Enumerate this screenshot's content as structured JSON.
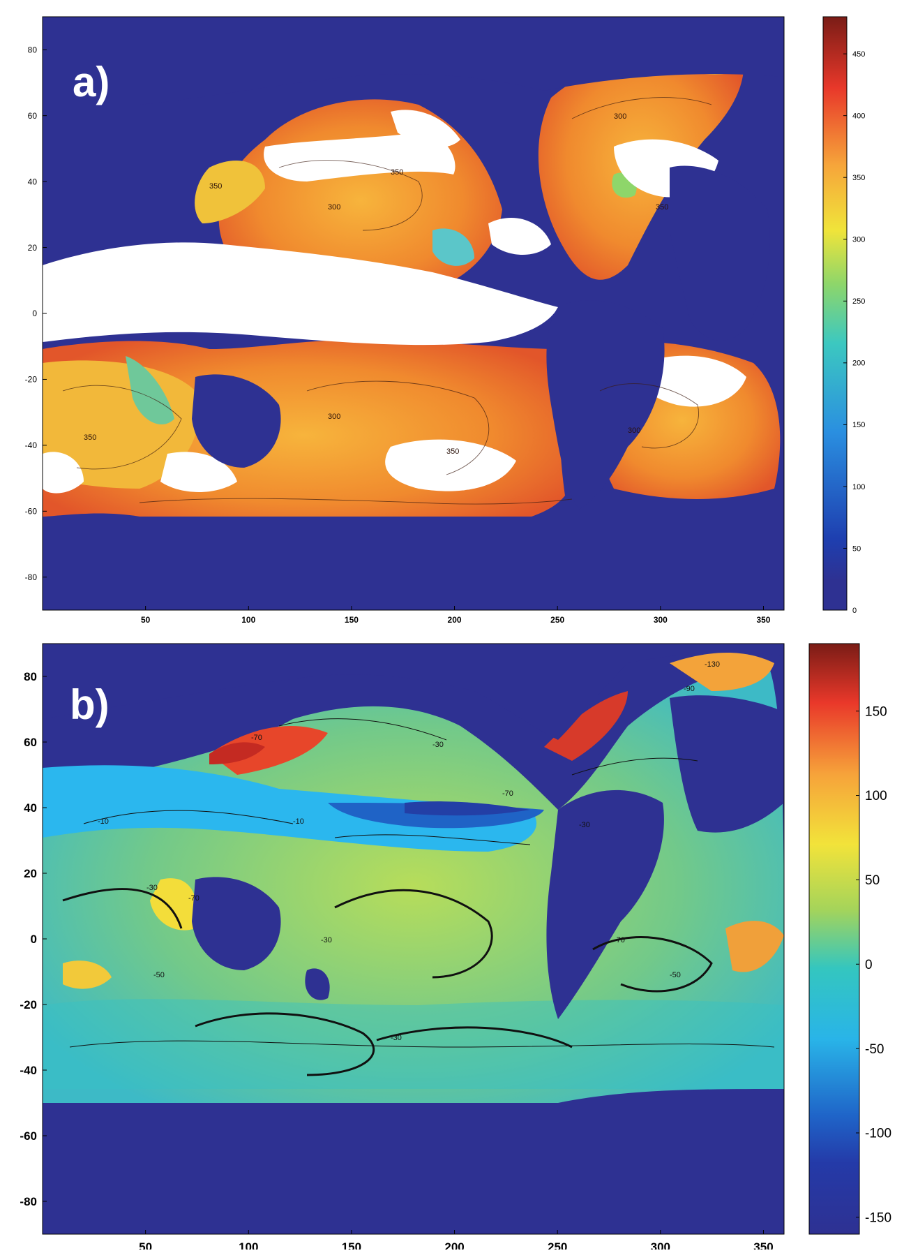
{
  "panels": [
    {
      "label": "a)",
      "x_ticks": [
        "50",
        "100",
        "150",
        "200",
        "250",
        "300",
        "350"
      ],
      "y_ticks": [
        "80",
        "60",
        "40",
        "20",
        "0",
        "-20",
        "-40",
        "-60",
        "-80"
      ],
      "colorbar_ticks": [
        "450",
        "400",
        "350",
        "300",
        "250",
        "200",
        "150",
        "100",
        "50",
        "0"
      ],
      "contour_labels": [
        "350",
        "300",
        "350",
        "300",
        "350",
        "350",
        "300",
        "350",
        "300"
      ]
    },
    {
      "label": "b)",
      "x_ticks": [
        "50",
        "100",
        "150",
        "200",
        "250",
        "300",
        "350"
      ],
      "y_ticks": [
        "80",
        "60",
        "40",
        "20",
        "0",
        "-20",
        "-40",
        "-60",
        "-80"
      ],
      "colorbar_ticks": [
        "150",
        "100",
        "50",
        "0",
        "-50",
        "-100",
        "-150"
      ],
      "contour_labels": [
        "-30",
        "-70",
        "-70",
        "-10",
        "-30",
        "-50",
        "-30",
        "-70",
        "-130",
        "-90",
        "-30",
        "-70",
        "-50",
        "-30",
        "-10"
      ]
    }
  ],
  "colors": {
    "ocean_mask": "#2e3192",
    "land_gap": "#ffffff",
    "jet_low": "#00008f",
    "jet_high": "#7f0000"
  }
}
